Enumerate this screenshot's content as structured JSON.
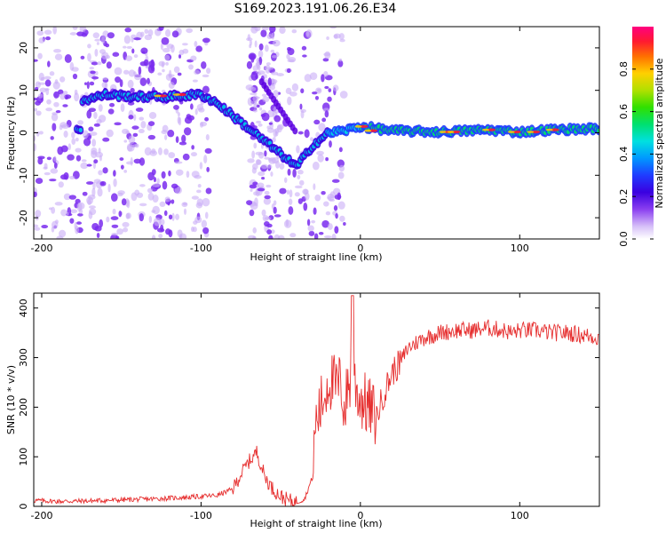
{
  "title": "S169.2023.191.06.26.E34",
  "chart_data": [
    {
      "type": "heatmap",
      "xlabel": "Height of straight line (km)",
      "ylabel": "Frequency (Hz)",
      "xlim": [
        -205,
        150
      ],
      "ylim": [
        -25,
        25
      ],
      "xticks": [
        -200,
        -100,
        0,
        100
      ],
      "yticks": [
        -20,
        -10,
        0,
        10,
        20
      ],
      "colorbar": {
        "label": "Normalized spectral amplitude",
        "range": [
          0,
          1
        ],
        "ticks": [
          "0.0",
          "0.2",
          "0.4",
          "0.6",
          "0.8"
        ],
        "colors": [
          "#ffffff",
          "#c9a6f7",
          "#8a3ff0",
          "#5b00e0",
          "#1f1fff",
          "#0090ff",
          "#00e0e0",
          "#00e040",
          "#a8e000",
          "#ffd400",
          "#ff7a00",
          "#ff1a1a",
          "#ff0080"
        ]
      },
      "features": [
        {
          "name": "ridge",
          "x": [
            -175,
            -160,
            -140,
            -120,
            -100,
            -90,
            -80,
            -70,
            -60,
            -50,
            -40,
            -30,
            -20,
            -10,
            0,
            20,
            50,
            80,
            100,
            120,
            150
          ],
          "y": [
            7.5,
            9,
            8.5,
            8.5,
            9,
            7,
            4,
            1,
            -2,
            -5,
            -8,
            -3,
            0,
            0.5,
            1.5,
            0.5,
            0.2,
            0.7,
            0.2,
            0.7,
            1
          ]
        }
      ]
    },
    {
      "type": "line",
      "xlabel": "Height of straight line (km)",
      "ylabel": "SNR (10 * v/v)",
      "xlim": [
        -205,
        150
      ],
      "ylim": [
        0,
        430
      ],
      "xticks": [
        -200,
        -100,
        0,
        100
      ],
      "yticks": [
        0,
        100,
        200,
        300,
        400
      ],
      "color": "#e62e2e",
      "x": [
        -205,
        -190,
        -170,
        -150,
        -130,
        -110,
        -90,
        -80,
        -75,
        -70,
        -65,
        -62,
        -60,
        -55,
        -50,
        -45,
        -40,
        -35,
        -30,
        -28,
        -25,
        -22,
        -20,
        -18,
        -15,
        -12,
        -10,
        -8,
        -5,
        -2,
        0,
        2,
        5,
        10,
        15,
        20,
        25,
        30,
        40,
        50,
        60,
        70,
        80,
        90,
        95,
        100,
        110,
        120,
        130,
        140,
        150
      ],
      "y": [
        12,
        10,
        11,
        13,
        15,
        18,
        22,
        35,
        65,
        90,
        110,
        80,
        60,
        35,
        20,
        12,
        8,
        15,
        60,
        170,
        200,
        230,
        260,
        250,
        240,
        250,
        190,
        240,
        270,
        230,
        220,
        210,
        200,
        180,
        230,
        270,
        290,
        320,
        340,
        350,
        355,
        355,
        360,
        355,
        350,
        355,
        355,
        350,
        350,
        345,
        340
      ]
    }
  ]
}
